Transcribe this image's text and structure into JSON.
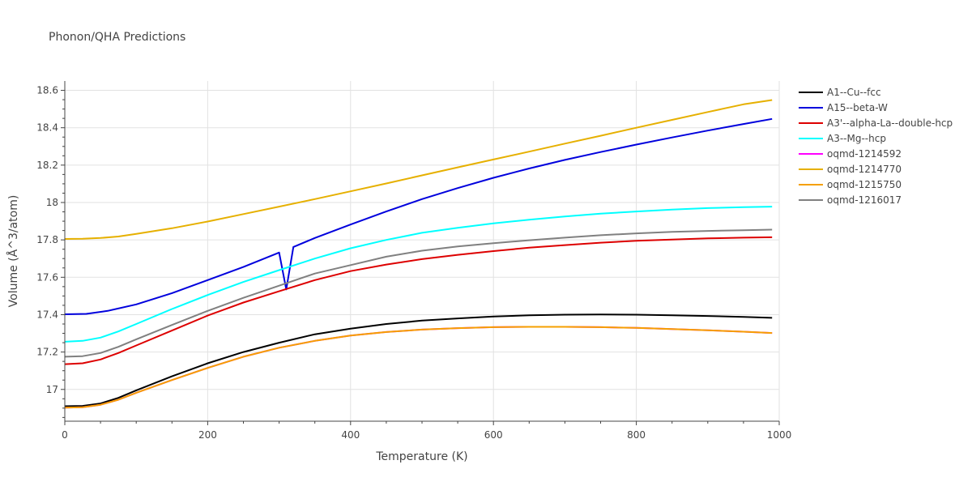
{
  "chart_data": {
    "type": "line",
    "title": "Phonon/QHA Predictions",
    "xlabel": "Temperature (K)",
    "ylabel": "Volume (Å^3/atom)",
    "xlim": [
      0,
      1000
    ],
    "ylim": [
      16.83,
      18.65
    ],
    "x_ticks": [
      0,
      200,
      400,
      600,
      800,
      1000
    ],
    "x_tick_labels": [
      "0",
      "200",
      "400",
      "600",
      "800",
      "1000"
    ],
    "y_ticks": [
      17,
      17.2,
      17.4,
      17.6,
      17.8,
      18,
      18.2,
      18.4,
      18.6
    ],
    "y_tick_labels": [
      "17",
      "17.2",
      "17.4",
      "17.6",
      "17.8",
      "18",
      "18.2",
      "18.4",
      "18.6"
    ],
    "grid": true,
    "legend_position": "right",
    "series": [
      {
        "name": "A1--Cu--fcc",
        "color": "#000000",
        "x": [
          0,
          25,
          50,
          75,
          100,
          150,
          200,
          250,
          300,
          350,
          400,
          450,
          500,
          550,
          600,
          650,
          700,
          750,
          800,
          850,
          900,
          950,
          990
        ],
        "y": [
          16.91,
          16.912,
          16.925,
          16.955,
          16.995,
          17.07,
          17.14,
          17.2,
          17.25,
          17.295,
          17.325,
          17.35,
          17.368,
          17.38,
          17.39,
          17.397,
          17.4,
          17.401,
          17.4,
          17.397,
          17.393,
          17.388,
          17.383
        ]
      },
      {
        "name": "A15--beta-W",
        "color": "#0000dd",
        "x": [
          0,
          30,
          60,
          100,
          150,
          200,
          250,
          300,
          310,
          320,
          350,
          400,
          450,
          500,
          550,
          600,
          650,
          700,
          750,
          800,
          850,
          900,
          950,
          990
        ],
        "y": [
          17.402,
          17.404,
          17.42,
          17.455,
          17.515,
          17.585,
          17.655,
          17.732,
          17.535,
          17.762,
          17.81,
          17.882,
          17.952,
          18.018,
          18.077,
          18.132,
          18.182,
          18.228,
          18.27,
          18.31,
          18.348,
          18.385,
          18.42,
          18.447
        ]
      },
      {
        "name": "A3'--alpha-La--double-hcp",
        "color": "#dd0000",
        "x": [
          0,
          25,
          50,
          75,
          100,
          150,
          200,
          250,
          300,
          350,
          400,
          450,
          500,
          550,
          600,
          650,
          700,
          750,
          800,
          850,
          900,
          950,
          990
        ],
        "y": [
          17.135,
          17.14,
          17.16,
          17.195,
          17.235,
          17.315,
          17.395,
          17.465,
          17.525,
          17.585,
          17.633,
          17.668,
          17.697,
          17.72,
          17.74,
          17.758,
          17.772,
          17.785,
          17.795,
          17.802,
          17.808,
          17.812,
          17.814
        ]
      },
      {
        "name": "A3--Mg--hcp",
        "color": "#00ffff",
        "x": [
          0,
          25,
          50,
          75,
          100,
          150,
          200,
          250,
          300,
          350,
          400,
          450,
          500,
          550,
          600,
          650,
          700,
          750,
          800,
          850,
          900,
          950,
          990
        ],
        "y": [
          17.255,
          17.26,
          17.277,
          17.31,
          17.35,
          17.43,
          17.505,
          17.575,
          17.638,
          17.7,
          17.755,
          17.8,
          17.838,
          17.865,
          17.888,
          17.908,
          17.925,
          17.94,
          17.952,
          17.962,
          17.97,
          17.975,
          17.978
        ]
      },
      {
        "name": "oqmd-1214592",
        "color": "#ff00ff",
        "x": [
          0,
          25,
          50,
          75,
          100,
          150,
          200,
          250,
          300,
          350,
          400,
          450,
          500,
          550,
          600,
          650,
          700,
          750,
          800,
          850,
          900,
          950,
          990
        ],
        "y": [
          16.903,
          16.905,
          16.918,
          16.945,
          16.982,
          17.05,
          17.115,
          17.175,
          17.223,
          17.26,
          17.288,
          17.307,
          17.32,
          17.328,
          17.333,
          17.335,
          17.335,
          17.333,
          17.329,
          17.323,
          17.316,
          17.309,
          17.302
        ]
      },
      {
        "name": "oqmd-1214770",
        "color": "#e6b000",
        "x": [
          0,
          25,
          50,
          75,
          100,
          150,
          200,
          250,
          300,
          350,
          400,
          450,
          500,
          550,
          600,
          650,
          700,
          750,
          800,
          850,
          900,
          950,
          990
        ],
        "y": [
          17.805,
          17.806,
          17.81,
          17.818,
          17.832,
          17.862,
          17.898,
          17.938,
          17.978,
          18.018,
          18.06,
          18.102,
          18.145,
          18.188,
          18.23,
          18.272,
          18.315,
          18.357,
          18.4,
          18.442,
          18.484,
          18.525,
          18.548
        ]
      },
      {
        "name": "oqmd-1215750",
        "color": "#f5a000",
        "x": [
          0,
          25,
          50,
          75,
          100,
          150,
          200,
          250,
          300,
          350,
          400,
          450,
          500,
          550,
          600,
          650,
          700,
          750,
          800,
          850,
          900,
          950,
          990
        ],
        "y": [
          16.903,
          16.905,
          16.918,
          16.945,
          16.982,
          17.05,
          17.115,
          17.175,
          17.223,
          17.26,
          17.288,
          17.307,
          17.32,
          17.328,
          17.333,
          17.335,
          17.335,
          17.333,
          17.329,
          17.323,
          17.316,
          17.309,
          17.302
        ]
      },
      {
        "name": "oqmd-1216017",
        "color": "#808080",
        "x": [
          0,
          25,
          50,
          75,
          100,
          150,
          200,
          250,
          300,
          350,
          400,
          450,
          500,
          550,
          600,
          650,
          700,
          750,
          800,
          850,
          900,
          950,
          990
        ],
        "y": [
          17.175,
          17.178,
          17.195,
          17.228,
          17.268,
          17.345,
          17.42,
          17.49,
          17.555,
          17.62,
          17.665,
          17.71,
          17.742,
          17.765,
          17.782,
          17.798,
          17.812,
          17.825,
          17.835,
          17.843,
          17.848,
          17.852,
          17.855
        ]
      }
    ]
  }
}
